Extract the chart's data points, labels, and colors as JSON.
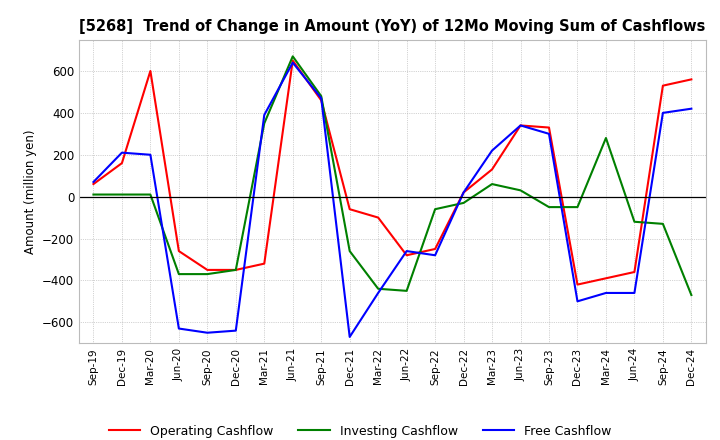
{
  "title": "[5268]  Trend of Change in Amount (YoY) of 12Mo Moving Sum of Cashflows",
  "ylabel": "Amount (million yen)",
  "ylim": [
    -700,
    750
  ],
  "yticks": [
    -600,
    -400,
    -200,
    0,
    200,
    400,
    600
  ],
  "x_labels": [
    "Sep-19",
    "Dec-19",
    "Mar-20",
    "Jun-20",
    "Sep-20",
    "Dec-20",
    "Mar-21",
    "Jun-21",
    "Sep-21",
    "Dec-21",
    "Mar-22",
    "Jun-22",
    "Sep-22",
    "Dec-22",
    "Mar-23",
    "Jun-23",
    "Sep-23",
    "Dec-23",
    "Mar-24",
    "Jun-24",
    "Sep-24",
    "Dec-24"
  ],
  "operating": [
    60,
    160,
    600,
    -260,
    -350,
    -350,
    -320,
    650,
    460,
    -60,
    -100,
    -280,
    -250,
    20,
    130,
    340,
    330,
    -420,
    -390,
    -360,
    530,
    560
  ],
  "investing": [
    10,
    10,
    10,
    -370,
    -370,
    -350,
    350,
    670,
    480,
    -260,
    -440,
    -450,
    -60,
    -30,
    60,
    30,
    -50,
    -50,
    280,
    -120,
    -130,
    -470
  ],
  "free": [
    70,
    210,
    200,
    -630,
    -650,
    -640,
    390,
    640,
    470,
    -670,
    -460,
    -260,
    -280,
    20,
    220,
    340,
    300,
    -500,
    -460,
    -460,
    400,
    420
  ],
  "operating_color": "#ff0000",
  "investing_color": "#008000",
  "free_color": "#0000ff",
  "legend_labels": [
    "Operating Cashflow",
    "Investing Cashflow",
    "Free Cashflow"
  ],
  "background_color": "#ffffff",
  "grid_color": "#aaaaaa"
}
